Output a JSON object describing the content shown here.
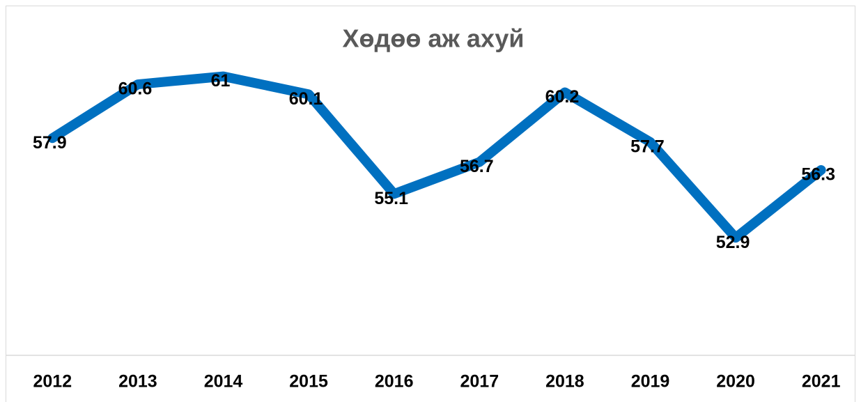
{
  "chart_data": {
    "type": "line",
    "title": "Хөдөө аж ахуй",
    "categories": [
      "2012",
      "2013",
      "2014",
      "2015",
      "2016",
      "2017",
      "2018",
      "2019",
      "2020",
      "2021"
    ],
    "values": [
      57.9,
      60.6,
      61,
      60.1,
      55.1,
      56.7,
      60.2,
      57.7,
      52.9,
      56.3
    ],
    "color": "#0070c0",
    "ylim": [
      47,
      62
    ]
  }
}
